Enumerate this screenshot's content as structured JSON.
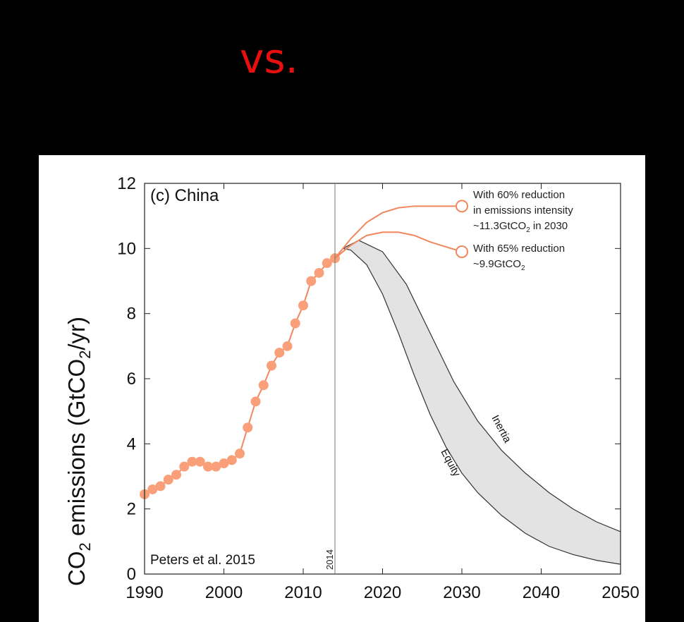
{
  "slide": {
    "title": "vs."
  },
  "chart_data": {
    "type": "line",
    "title": "(c) China",
    "ylabel_main": "CO",
    "ylabel_sub": "2",
    "ylabel_rest_a": " emissions (GtCO",
    "ylabel_rest_b": "/yr)",
    "xlim": [
      1990,
      2050
    ],
    "ylim": [
      0,
      12
    ],
    "x_ticks": [
      "1990",
      "2000",
      "2010",
      "2020",
      "2030",
      "2040",
      "2050"
    ],
    "y_ticks": [
      "0",
      "2",
      "4",
      "6",
      "8",
      "10",
      "12"
    ],
    "grid": false,
    "historical": {
      "x": [
        1990,
        1991,
        1992,
        1993,
        1994,
        1995,
        1996,
        1997,
        1998,
        1999,
        2000,
        2001,
        2002,
        2003,
        2004,
        2005,
        2006,
        2007,
        2008,
        2009,
        2010,
        2011,
        2012,
        2013,
        2014
      ],
      "y": [
        2.45,
        2.6,
        2.7,
        2.9,
        3.05,
        3.3,
        3.45,
        3.45,
        3.3,
        3.3,
        3.4,
        3.5,
        3.7,
        4.5,
        5.3,
        5.8,
        6.4,
        6.8,
        7.0,
        7.7,
        8.25,
        9.0,
        9.25,
        9.55,
        9.7
      ]
    },
    "scenario_60": {
      "x": [
        2014,
        2016,
        2018,
        2020,
        2022,
        2024,
        2026,
        2028,
        2030
      ],
      "y": [
        9.7,
        10.3,
        10.8,
        11.1,
        11.25,
        11.3,
        11.3,
        11.3,
        11.3
      ],
      "endpoint": 11.3
    },
    "scenario_65": {
      "x": [
        2014,
        2016,
        2018,
        2020,
        2022,
        2024,
        2026,
        2028,
        2030
      ],
      "y": [
        9.7,
        10.1,
        10.4,
        10.5,
        10.5,
        10.4,
        10.2,
        10.05,
        9.9
      ],
      "endpoint": 9.9
    },
    "band": {
      "inertia": {
        "name": "Inertia",
        "x": [
          2015,
          2017,
          2020,
          2023,
          2026,
          2029,
          2032,
          2035,
          2038,
          2041,
          2044,
          2047,
          2050
        ],
        "y": [
          10.0,
          10.25,
          9.9,
          8.9,
          7.4,
          5.9,
          4.7,
          3.8,
          3.1,
          2.5,
          2.0,
          1.6,
          1.3
        ]
      },
      "equity": {
        "name": "Equity",
        "x": [
          2015,
          2016,
          2018,
          2020,
          2022,
          2024,
          2026,
          2028,
          2030,
          2032,
          2035,
          2038,
          2041,
          2044,
          2047,
          2050
        ],
        "y": [
          10.0,
          9.95,
          9.5,
          8.6,
          7.4,
          6.1,
          4.9,
          3.9,
          3.1,
          2.5,
          1.8,
          1.25,
          0.85,
          0.6,
          0.42,
          0.3
        ]
      }
    },
    "vline": {
      "x": 2014,
      "label": "2014"
    },
    "annotations": {
      "a60_line1": "With 60% reduction",
      "a60_line2": "in emissions intensity",
      "a60_line3a": "~11.3GtCO",
      "a60_line3sub": "2",
      "a60_line3b": " in 2030",
      "a65_line1": "With 65% reduction",
      "a65_line2a": "~9.9GtCO",
      "a65_line2sub": "2"
    },
    "source": "Peters et al. 2015",
    "colors": {
      "accent": "#f9a07a",
      "line": "#f0875e",
      "band": "#e3e3e3",
      "axis": "#222222",
      "title": "#e8100f"
    }
  }
}
